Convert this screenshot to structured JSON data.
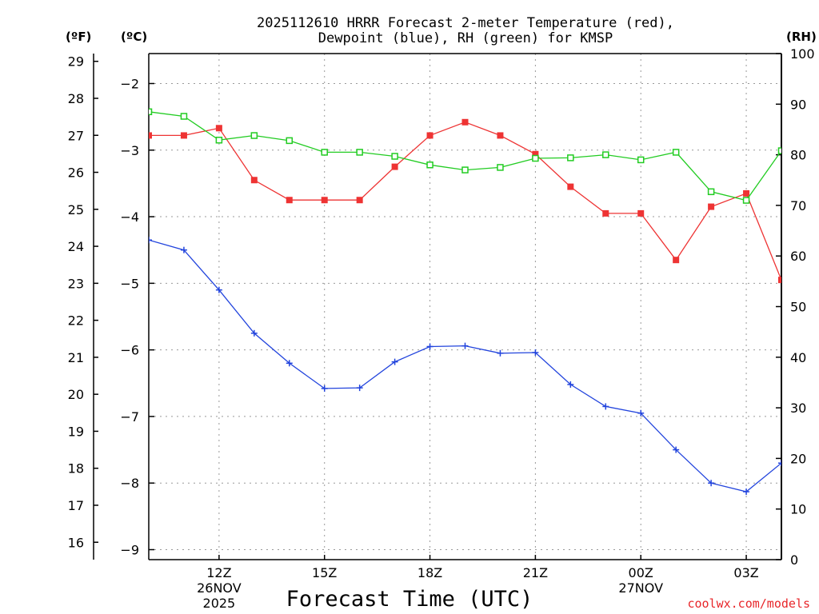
{
  "chart_data": {
    "type": "line",
    "title_lines": [
      "2025112610 HRRR Forecast 2-meter Temperature (red),",
      "Dewpoint (blue), RH (green) for KMSP"
    ],
    "xlabel": "Forecast Time (UTC)",
    "credit": "coolwx.com/models",
    "unit_labels": {
      "fahrenheit": "(ºF)",
      "celsius": "(ºC)",
      "rh": "(RH)"
    },
    "x_hours_range": [
      10,
      28
    ],
    "x_ticks": [
      {
        "hour": 12,
        "lines": [
          "12Z",
          "26NOV",
          "2025"
        ]
      },
      {
        "hour": 15,
        "lines": [
          "15Z"
        ]
      },
      {
        "hour": 18,
        "lines": [
          "18Z"
        ]
      },
      {
        "hour": 21,
        "lines": [
          "21Z"
        ]
      },
      {
        "hour": 24,
        "lines": [
          "00Z",
          "27NOV"
        ]
      },
      {
        "hour": 27,
        "lines": [
          "03Z"
        ]
      }
    ],
    "celsius_axis": {
      "range": [
        -9.15,
        -1.55
      ],
      "ticks": [
        -2,
        -3,
        -4,
        -5,
        -6,
        -7,
        -8,
        -9
      ]
    },
    "fahrenheit_ticks": [
      29,
      28,
      27,
      26,
      25,
      24,
      23,
      22,
      21,
      20,
      19,
      18,
      17,
      16
    ],
    "rh_axis": {
      "range": [
        0,
        100
      ],
      "ticks": [
        0,
        10,
        20,
        30,
        40,
        50,
        60,
        70,
        80,
        90,
        100
      ]
    },
    "series": [
      {
        "name": "Temperature",
        "unit": "C",
        "axis": "celsius",
        "color": "#ee3333",
        "marker": "filled-square",
        "x": [
          10,
          11,
          12,
          13,
          14,
          15,
          16,
          17,
          18,
          19,
          20,
          21,
          22,
          23,
          24,
          25,
          26,
          27,
          28
        ],
        "values": [
          -2.78,
          -2.78,
          -2.67,
          -3.45,
          -3.75,
          -3.75,
          -3.75,
          -3.25,
          -2.78,
          -2.58,
          -2.78,
          -3.06,
          -3.55,
          -3.95,
          -3.95,
          -4.65,
          -3.85,
          -3.65,
          -4.95
        ]
      },
      {
        "name": "Dewpoint",
        "unit": "C",
        "axis": "celsius",
        "color": "#2244dd",
        "marker": "plus",
        "x": [
          10,
          11,
          12,
          13,
          14,
          15,
          16,
          17,
          18,
          19,
          20,
          21,
          22,
          23,
          24,
          25,
          26,
          27,
          28
        ],
        "values": [
          -4.35,
          -4.5,
          -5.1,
          -5.75,
          -6.2,
          -6.58,
          -6.57,
          -6.18,
          -5.95,
          -5.94,
          -6.05,
          -6.04,
          -6.52,
          -6.85,
          -6.95,
          -7.5,
          -8.0,
          -8.13,
          -7.7
        ]
      },
      {
        "name": "RH",
        "unit": "%",
        "axis": "rh",
        "color": "#22cc22",
        "marker": "open-square",
        "x": [
          10,
          11,
          12,
          13,
          14,
          15,
          16,
          17,
          18,
          19,
          20,
          21,
          22,
          23,
          24,
          25,
          26,
          27,
          28
        ],
        "values": [
          88.5,
          87.6,
          82.9,
          83.8,
          82.8,
          80.5,
          80.5,
          79.7,
          78.0,
          77.0,
          77.5,
          79.3,
          79.4,
          80.0,
          79.0,
          80.5,
          72.7,
          71.0,
          80.8
        ]
      }
    ]
  }
}
